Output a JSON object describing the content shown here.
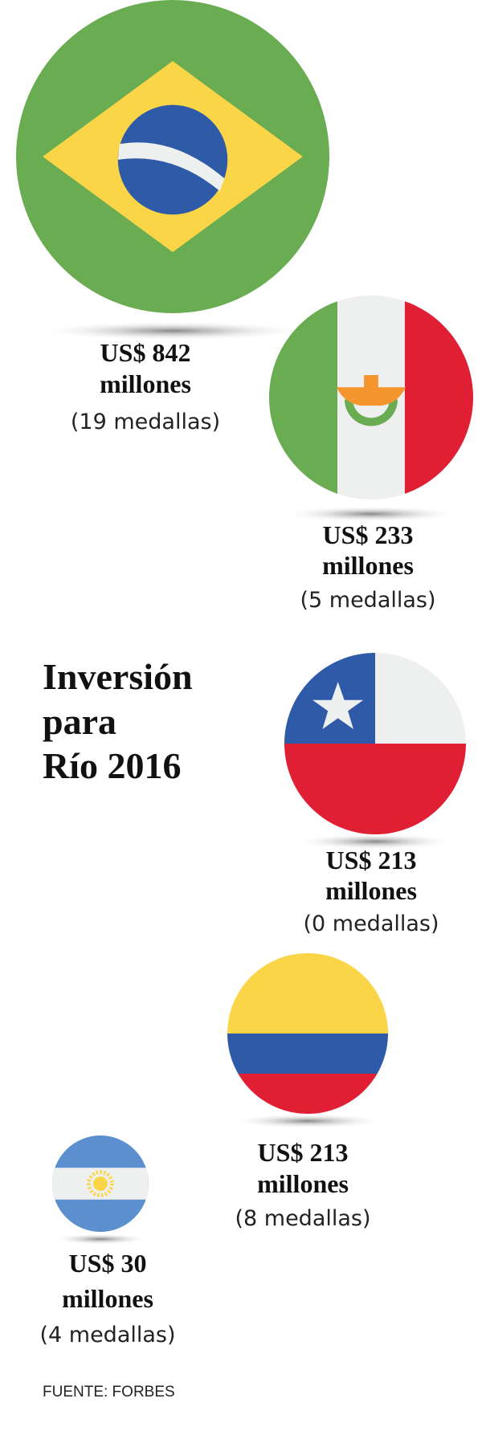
{
  "title": [
    "Inversión",
    "para",
    "Río 2016"
  ],
  "items": [
    {
      "amount": "US$ 842",
      "unit": "millones",
      "medals": "(19 medallas)"
    },
    {
      "amount": "US$ 233",
      "unit": "millones",
      "medals": "(5 medallas)"
    },
    {
      "amount": "US$ 213",
      "unit": "millones",
      "medals": "(0 medallas)"
    },
    {
      "amount": "US$ 213",
      "unit": "millones",
      "medals": "(8 medallas)"
    },
    {
      "amount": "US$ 30",
      "unit": "millones",
      "medals": "(4 medallas)"
    }
  ],
  "source": "FUENTE: FORBES"
}
